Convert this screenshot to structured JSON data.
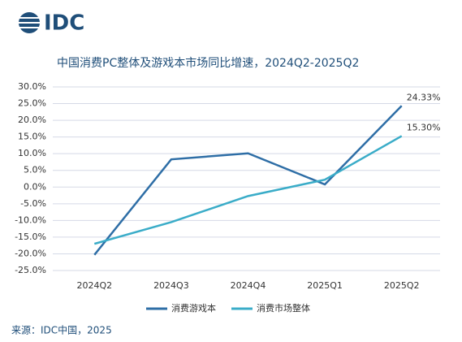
{
  "logo": "IDC",
  "source": "来源：IDC中国，2025",
  "chart_data": {
    "type": "line",
    "title": "中国消费PC整体及游戏本市场同比增速，2024Q2-2025Q2",
    "categories": [
      "2024Q2",
      "2024Q3",
      "2024Q4",
      "2025Q1",
      "2025Q2"
    ],
    "series": [
      {
        "name": "消费游戏本",
        "color": "#2e6ea6",
        "values": [
          -20.3,
          8.3,
          10.1,
          0.8,
          24.33
        ],
        "value_labels": [
          null,
          null,
          null,
          null,
          "24.33%"
        ]
      },
      {
        "name": "消费市场整体",
        "color": "#3aacc8",
        "values": [
          -17,
          -10.5,
          -2.7,
          2.2,
          15.3
        ],
        "value_labels": [
          null,
          null,
          null,
          null,
          "15.30%"
        ]
      }
    ],
    "ylim": [
      -25,
      30
    ],
    "yticks": [
      {
        "value": -25,
        "label": "-25.0%"
      },
      {
        "value": -20,
        "label": "-20.0%"
      },
      {
        "value": -15,
        "label": "-15.0%"
      },
      {
        "value": -10,
        "label": "-10.0%"
      },
      {
        "value": -5,
        "label": "-5.0%"
      },
      {
        "value": 0,
        "label": "0.0%"
      },
      {
        "value": 5,
        "label": "5.0%"
      },
      {
        "value": 10,
        "label": "10.0%"
      },
      {
        "value": 15,
        "label": "15.0%"
      },
      {
        "value": 20,
        "label": "20.0%"
      },
      {
        "value": 25,
        "label": "25.0%"
      },
      {
        "value": 30,
        "label": "30.0%"
      }
    ],
    "grid": true,
    "legend": "bottom"
  }
}
